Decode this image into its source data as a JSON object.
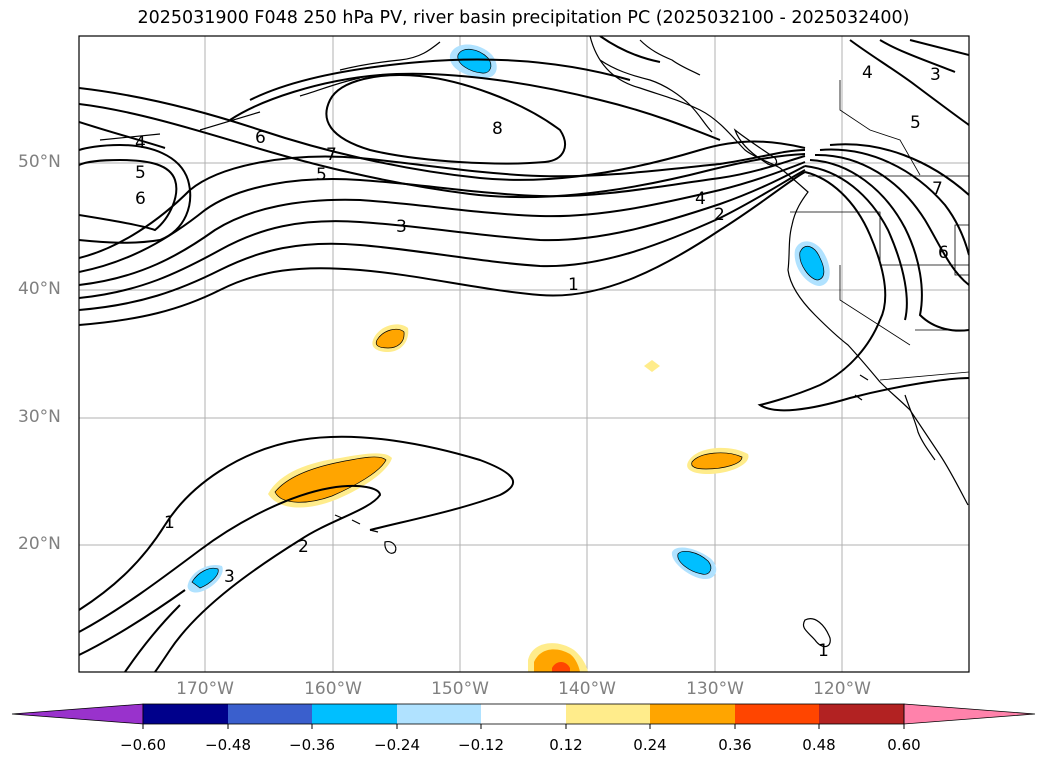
{
  "title": "2025031900 F048 250 hPa PV, river basin precipitation PC (2025032100 - 2025032400)",
  "map": {
    "lat_labels": [
      "50°N",
      "40°N",
      "30°N",
      "20°N"
    ],
    "lon_labels": [
      "170°W",
      "160°W",
      "150°W",
      "140°W",
      "130°W",
      "120°W"
    ],
    "contour_labels": [
      "1",
      "1",
      "1",
      "2",
      "2",
      "3",
      "3",
      "4",
      "4",
      "5",
      "5",
      "5",
      "6",
      "6",
      "6",
      "7",
      "7",
      "8",
      "4",
      "3"
    ]
  },
  "colorbar": {
    "ticks": [
      "−0.60",
      "−0.48",
      "−0.36",
      "−0.24",
      "−0.12",
      "0.12",
      "0.24",
      "0.36",
      "0.48",
      "0.60"
    ],
    "colors": [
      "#9932cc",
      "#00008b",
      "#3a5fcd",
      "#00bfff",
      "#b0e2ff",
      "#ffffff",
      "#ffec8b",
      "#ffa500",
      "#ff4500",
      "#b22222",
      "#ff82ab"
    ]
  }
}
